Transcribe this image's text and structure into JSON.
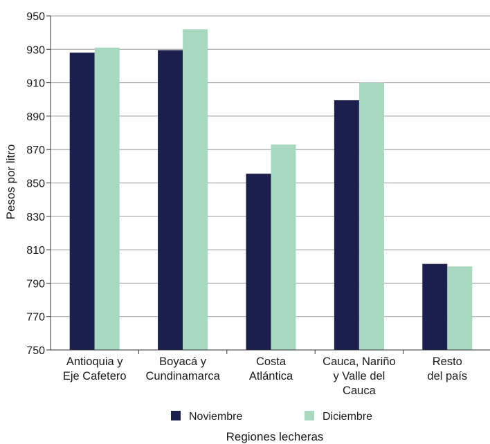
{
  "chart_data": {
    "type": "bar",
    "categories": [
      [
        "Antioquia y",
        "Eje Cafetero"
      ],
      [
        "Boyacá y",
        "Cundinamarca"
      ],
      [
        "Costa",
        "Atlántica"
      ],
      [
        "Cauca, Nariño",
        "y Valle del",
        "Cauca"
      ],
      [
        "Resto",
        "del país"
      ]
    ],
    "series": [
      {
        "name": "Noviembre",
        "color": "#1a1f4d",
        "values": [
          928,
          929.5,
          855.5,
          899.5,
          801.5
        ]
      },
      {
        "name": "Diciembre",
        "color": "#a8d8c0",
        "values": [
          931,
          942,
          873,
          910,
          800
        ]
      }
    ],
    "xlabel": "Regiones lecheras",
    "ylabel": "Pesos por litro",
    "ylim": [
      750,
      950
    ],
    "yticks": [
      "750",
      "770",
      "790",
      "810",
      "830",
      "850",
      "870",
      "890",
      "910",
      "930",
      "950"
    ],
    "grid": true,
    "legend": "bottom"
  }
}
